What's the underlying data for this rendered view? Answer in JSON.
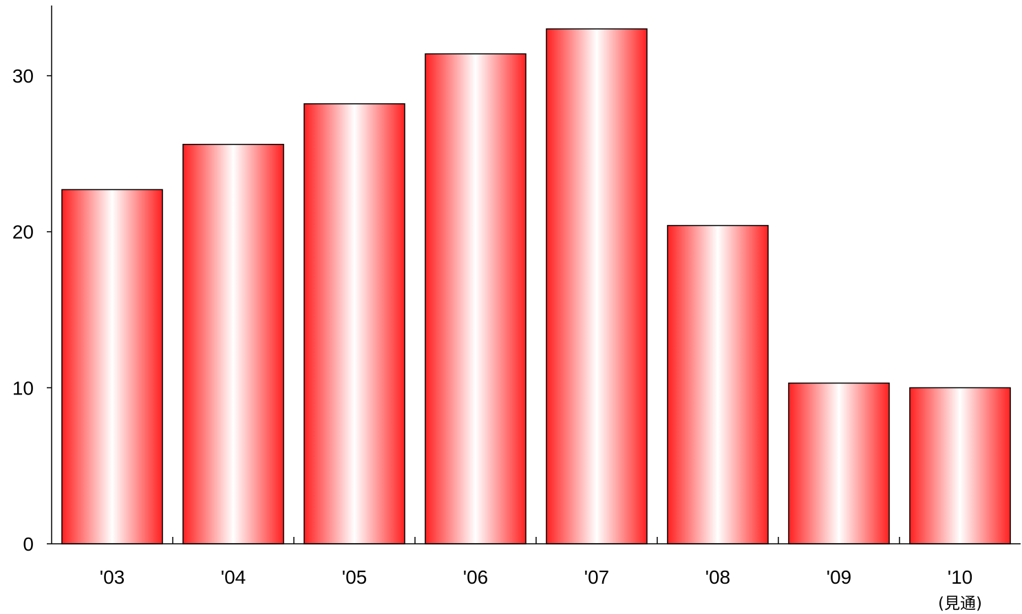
{
  "chart_data": {
    "type": "bar",
    "title": "",
    "xlabel": "",
    "ylabel": "",
    "categories": [
      "'03",
      "'04",
      "'05",
      "'06",
      "'07",
      "'08",
      "'09",
      "'10"
    ],
    "category_sublabels": [
      "",
      "",
      "",
      "",
      "",
      "",
      "",
      "(見通)"
    ],
    "values": [
      22.7,
      25.6,
      28.2,
      31.4,
      33.0,
      20.4,
      10.3,
      10.0
    ],
    "ylim": [
      0,
      34.5
    ],
    "yticks": [
      0,
      10,
      20,
      30
    ],
    "grid": false,
    "legend": "none",
    "bar_style": "red-white-red horizontal gradient with black outline"
  },
  "colors": {
    "bar_edge": "#ff2020",
    "bar_center": "#ffffff",
    "bar_outline": "#000000",
    "axis": "#000000"
  }
}
